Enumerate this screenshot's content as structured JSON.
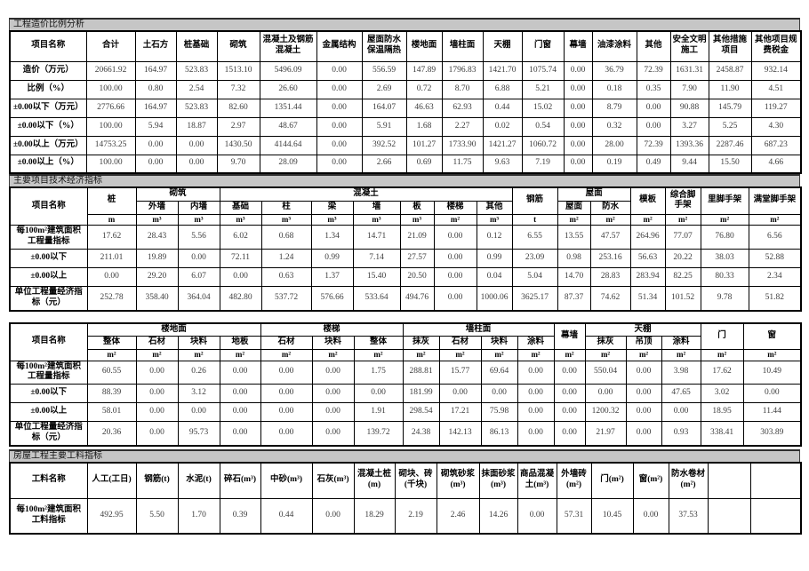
{
  "sections": {
    "cost_ratio_title": "工程造价比例分析",
    "tech_econ_title": "主要项目技术经济指标",
    "materials_title": "房屋工程主要工料指标"
  },
  "table1": {
    "name_header": "项目名称",
    "columns": [
      "合计",
      "土石方",
      "桩基础",
      "砌筑",
      "混凝土及钢筋混凝土",
      "金属结构",
      "屋面防水保温隔热",
      "楼地面",
      "墙柱面",
      "天棚",
      "门窗",
      "幕墙",
      "油漆涂料",
      "其他",
      "安全文明施工",
      "其他措施项目",
      "其他项目规费税金"
    ],
    "rows": [
      {
        "label": "造价（万元）",
        "values": [
          "20661.92",
          "164.97",
          "523.83",
          "1513.10",
          "5496.09",
          "0.00",
          "556.59",
          "147.89",
          "1796.83",
          "1421.70",
          "1075.74",
          "0.00",
          "36.79",
          "72.39",
          "1631.31",
          "2458.87",
          "932.14"
        ]
      },
      {
        "label": "比例（%）",
        "values": [
          "100.00",
          "0.80",
          "2.54",
          "7.32",
          "26.60",
          "0.00",
          "2.69",
          "0.72",
          "8.70",
          "6.88",
          "5.21",
          "0.00",
          "0.18",
          "0.35",
          "7.90",
          "11.90",
          "4.51"
        ]
      },
      {
        "label": "±0.00以下（万元）",
        "values": [
          "2776.66",
          "164.97",
          "523.83",
          "82.60",
          "1351.44",
          "0.00",
          "164.07",
          "46.63",
          "62.93",
          "0.44",
          "15.02",
          "0.00",
          "8.79",
          "0.00",
          "90.88",
          "145.79",
          "119.27"
        ]
      },
      {
        "label": "±0.00以下（%）",
        "values": [
          "100.00",
          "5.94",
          "18.87",
          "2.97",
          "48.67",
          "0.00",
          "5.91",
          "1.68",
          "2.27",
          "0.02",
          "0.54",
          "0.00",
          "0.32",
          "0.00",
          "3.27",
          "5.25",
          "4.30"
        ]
      },
      {
        "label": "±0.00以上（万元）",
        "values": [
          "14753.25",
          "0.00",
          "0.00",
          "1430.50",
          "4144.64",
          "0.00",
          "392.52",
          "101.27",
          "1733.90",
          "1421.27",
          "1060.72",
          "0.00",
          "28.00",
          "72.39",
          "1393.36",
          "2287.46",
          "687.23"
        ]
      },
      {
        "label": "±0.00以上（%）",
        "values": [
          "100.00",
          "0.00",
          "0.00",
          "9.70",
          "28.09",
          "0.00",
          "2.66",
          "0.69",
          "11.75",
          "9.63",
          "7.19",
          "0.00",
          "0.19",
          "0.49",
          "9.44",
          "15.50",
          "4.66"
        ]
      }
    ]
  },
  "table2": {
    "name_header": "项目名称",
    "groups": {
      "pile": "桩",
      "masonry": "砌筑",
      "concrete": "混凝土",
      "rebar": "钢筋",
      "roof": "屋面",
      "formwork": "模板",
      "scaffold_comb": "综合脚手架",
      "scaffold_inner": "里脚手架",
      "scaffold_full": "满堂脚手架"
    },
    "subs": [
      "外墙",
      "内墙",
      "基础",
      "柱",
      "梁",
      "墙",
      "板",
      "楼梯",
      "其他",
      "屋面",
      "防水"
    ],
    "units": [
      "m",
      "m³",
      "m³",
      "m³",
      "m³",
      "m³",
      "m³",
      "m³",
      "m²",
      "m³",
      "t",
      "m²",
      "m²",
      "m²",
      "m²",
      "m²",
      "m²"
    ],
    "rows": [
      {
        "label": "每100m²建筑面积工程量指标",
        "values": [
          "17.62",
          "28.43",
          "5.56",
          "6.02",
          "0.68",
          "1.34",
          "14.71",
          "21.09",
          "0.00",
          "0.12",
          "6.55",
          "13.55",
          "47.57",
          "264.96",
          "77.07",
          "76.80",
          "6.56"
        ]
      },
      {
        "label": "±0.00以下",
        "values": [
          "211.01",
          "19.89",
          "0.00",
          "72.11",
          "1.24",
          "0.99",
          "7.14",
          "27.57",
          "0.00",
          "0.99",
          "23.09",
          "0.98",
          "253.16",
          "56.63",
          "20.22",
          "38.03",
          "52.88"
        ]
      },
      {
        "label": "±0.00以上",
        "values": [
          "0.00",
          "29.20",
          "6.07",
          "0.00",
          "0.63",
          "1.37",
          "15.40",
          "20.50",
          "0.00",
          "0.04",
          "5.04",
          "14.70",
          "28.83",
          "283.94",
          "82.25",
          "80.33",
          "2.34"
        ]
      },
      {
        "label": "单位工程量经济指标（元）",
        "values": [
          "252.78",
          "358.40",
          "364.04",
          "482.80",
          "537.72",
          "576.66",
          "533.64",
          "494.76",
          "0.00",
          "1000.06",
          "3625.17",
          "87.37",
          "74.62",
          "51.34",
          "101.52",
          "9.78",
          "51.82"
        ]
      }
    ]
  },
  "table3": {
    "name_header": "项目名称",
    "groups": {
      "floor": "楼地面",
      "stair": "楼梯",
      "wall": "墙柱面",
      "curtain": "幕墙",
      "ceiling": "天棚",
      "door": "门",
      "window": "窗"
    },
    "subs": [
      "整体",
      "石材",
      "块料",
      "地板",
      "石材",
      "块料",
      "整体",
      "抹灰",
      "石材",
      "块料",
      "涂料",
      "抹灰",
      "吊顶",
      "涂料"
    ],
    "units": [
      "m²",
      "m²",
      "m²",
      "m²",
      "m²",
      "m²",
      "m²",
      "m²",
      "m²",
      "m²",
      "m²",
      "m²",
      "m²",
      "m²",
      "m²",
      "m²",
      "m²"
    ],
    "rows": [
      {
        "label": "每100m²建筑面积工程量指标",
        "values": [
          "60.55",
          "0.00",
          "0.26",
          "0.00",
          "0.00",
          "0.00",
          "1.75",
          "288.81",
          "15.77",
          "69.64",
          "0.00",
          "0.00",
          "550.04",
          "0.00",
          "3.98",
          "17.62",
          "10.49"
        ]
      },
      {
        "label": "±0.00以下",
        "values": [
          "88.39",
          "0.00",
          "3.12",
          "0.00",
          "0.00",
          "0.00",
          "0.00",
          "181.99",
          "0.00",
          "0.00",
          "0.00",
          "0.00",
          "0.00",
          "0.00",
          "47.65",
          "3.02",
          "0.00"
        ]
      },
      {
        "label": "±0.00以上",
        "values": [
          "58.01",
          "0.00",
          "0.00",
          "0.00",
          "0.00",
          "0.00",
          "1.91",
          "298.54",
          "17.21",
          "75.98",
          "0.00",
          "0.00",
          "1200.32",
          "0.00",
          "0.00",
          "18.95",
          "11.44"
        ]
      },
      {
        "label": "单位工程量经济指标（元）",
        "values": [
          "20.36",
          "0.00",
          "95.73",
          "0.00",
          "0.00",
          "0.00",
          "139.72",
          "24.38",
          "142.13",
          "86.13",
          "0.00",
          "0.00",
          "21.97",
          "0.00",
          "0.93",
          "338.41",
          "303.89"
        ]
      }
    ]
  },
  "table4": {
    "name_header": "工料名称",
    "columns": [
      "人工(工日)",
      "钢筋(t)",
      "水泥(t)",
      "碎石(m³)",
      "中砂(m³)",
      "石灰(m³)",
      "混凝土桩(m)",
      "砌块、砖(千块)",
      "砌筑砂浆(m³)",
      "抹面砂浆(m³)",
      "商品混凝土(m³)",
      "外墙砖(m²)",
      "门(m²)",
      "窗(m²)",
      "防水卷材(m²)",
      "",
      ""
    ],
    "rows": [
      {
        "label": "每100m²建筑面积工料指标",
        "values": [
          "492.95",
          "5.50",
          "1.70",
          "0.39",
          "0.44",
          "0.00",
          "18.29",
          "2.19",
          "2.46",
          "14.26",
          "0.00",
          "57.31",
          "10.45",
          "0.00",
          "37.53",
          "",
          ""
        ]
      }
    ]
  }
}
